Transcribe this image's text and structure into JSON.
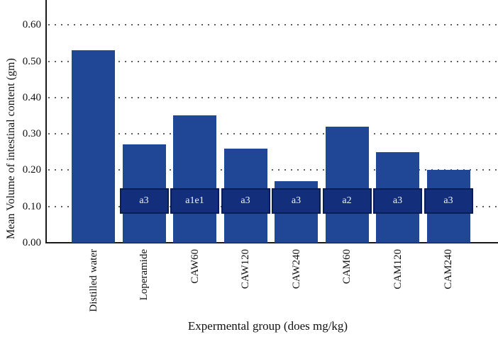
{
  "chart_data": {
    "type": "bar",
    "title": "",
    "xlabel": "Expermental group (does mg/kg)",
    "ylabel": "Mean Volume of intestinal content (gm)",
    "categories": [
      "Distilled water",
      "Loperamide",
      "CAW60",
      "CAW120",
      "CAW240",
      "CAM60",
      "CAM120",
      "CAM240"
    ],
    "values": [
      0.53,
      0.27,
      0.35,
      0.26,
      0.17,
      0.32,
      0.25,
      0.2
    ],
    "bar_annotations": [
      "",
      "a3",
      "a1e1",
      "a3",
      "a3",
      "a2",
      "a3",
      "a3"
    ],
    "annotation_band": {
      "from": 0.08,
      "to": 0.15
    },
    "yticks": [
      0.0,
      0.1,
      0.2,
      0.3,
      0.4,
      0.5,
      0.6
    ],
    "ytick_labels": [
      "0.00",
      "0.10",
      "0.20",
      "0.30",
      "0.40",
      "0.50",
      "0.60"
    ],
    "ylim": [
      0,
      0.65
    ],
    "grid": "horizontal-dotted",
    "legend": "none",
    "colors": {
      "bar": "#1f4795",
      "annotation_fill": "#132f7c",
      "annotation_border": "#0a1c55",
      "annotation_text": "#eef1f8",
      "axis": "#1a1a1a",
      "grid_dots": "#5e5e5e",
      "text": "#111111"
    }
  }
}
